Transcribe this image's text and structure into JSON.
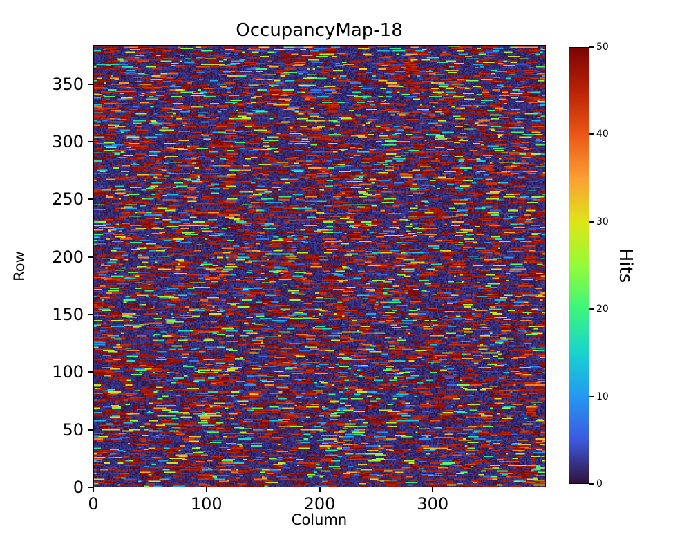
{
  "chart_data": {
    "type": "heatmap",
    "title": "OccupancyMap-18",
    "xlabel": "Column",
    "ylabel": "Row",
    "colorbar_label": "Hits",
    "x_ticks": [
      0,
      100,
      200,
      300
    ],
    "y_ticks": [
      0,
      50,
      100,
      150,
      200,
      250,
      300,
      350
    ],
    "colorbar_ticks": [
      0,
      10,
      20,
      30,
      40,
      50
    ],
    "x_extent": [
      0,
      400
    ],
    "y_extent": [
      0,
      384
    ],
    "value_range": [
      0,
      50
    ],
    "colormap": "turbo",
    "colormap_stops": [
      {
        "t": 0.0,
        "color": "#30123b"
      },
      {
        "t": 0.1,
        "color": "#3c5ae0"
      },
      {
        "t": 0.2,
        "color": "#2499f1"
      },
      {
        "t": 0.3,
        "color": "#18d4cd"
      },
      {
        "t": 0.4,
        "color": "#3cf57d"
      },
      {
        "t": 0.5,
        "color": "#95fb37"
      },
      {
        "t": 0.6,
        "color": "#dee518"
      },
      {
        "t": 0.7,
        "color": "#fb9f35"
      },
      {
        "t": 0.8,
        "color": "#eb5715"
      },
      {
        "t": 0.9,
        "color": "#ba2206"
      },
      {
        "t": 1.0,
        "color": "#7a0403"
      }
    ],
    "pattern": {
      "description": "Dense random speckle of short horizontal dashes: dark near-zero background with many saturated high-hit (red) dashes and scattered mid-value cyan/green/yellow/orange speckles",
      "seed": 18,
      "dash_probability": 0.42,
      "dash_length_range": [
        2,
        11
      ],
      "gap_length_range": [
        1,
        12
      ],
      "high_value_fraction": 0.68,
      "high_value_range": [
        43,
        50
      ],
      "mid_value_range": [
        4,
        42
      ],
      "background_value_range": [
        0,
        3.5
      ]
    },
    "colors": {
      "figure_background": "#ffffff",
      "spine": "#000000",
      "text": "#000000"
    }
  }
}
